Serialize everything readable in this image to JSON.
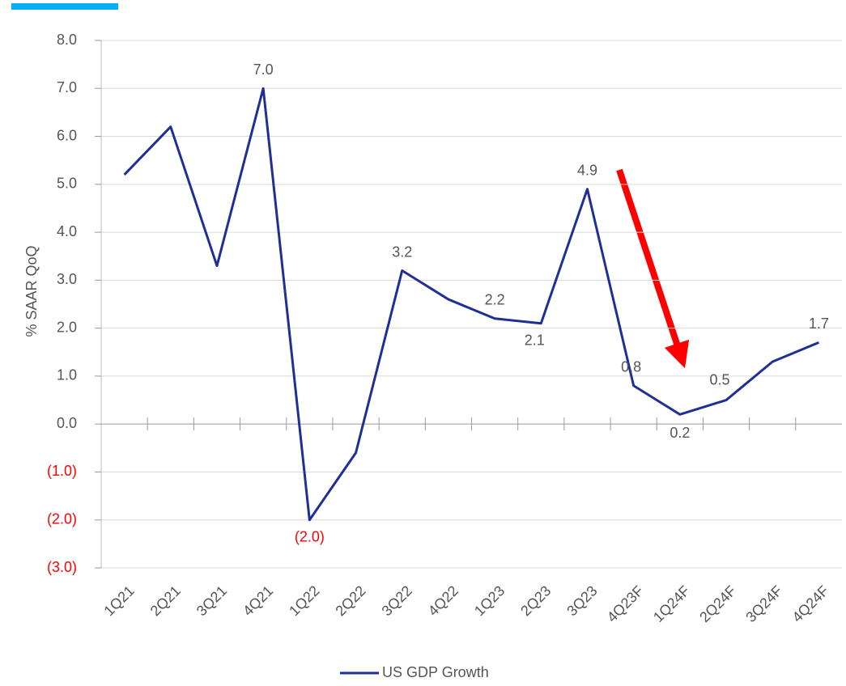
{
  "chart_data": {
    "type": "line",
    "y_label": "% SAAR QoQ",
    "categories": [
      "1Q21",
      "2Q21",
      "3Q21",
      "4Q21",
      "1Q22",
      "2Q22",
      "3Q22",
      "4Q22",
      "1Q23",
      "2Q23",
      "3Q23",
      "4Q23F",
      "1Q24F",
      "2Q24F",
      "3Q24F",
      "4Q24F"
    ],
    "series": [
      {
        "name": "US GDP Growth",
        "color": "#1f2f96",
        "values": [
          5.2,
          6.2,
          3.3,
          7.0,
          -2.0,
          -0.6,
          3.2,
          2.6,
          2.2,
          2.1,
          4.9,
          0.8,
          0.2,
          0.5,
          1.3,
          1.7
        ],
        "value_labels": [
          null,
          null,
          null,
          "7.0",
          "(2.0)",
          null,
          "3.2",
          null,
          "2.2",
          "2.1",
          "4.9",
          "0.8",
          "0.2",
          "0.5",
          null,
          "1.7"
        ]
      }
    ],
    "ylim": [
      -3,
      8
    ],
    "yticks": [
      {
        "value": -3,
        "label": "(3.0)"
      },
      {
        "value": -2,
        "label": "(2.0)"
      },
      {
        "value": -1,
        "label": "(1.0)"
      },
      {
        "value": 0,
        "label": "0.0"
      },
      {
        "value": 1,
        "label": "1.0"
      },
      {
        "value": 2,
        "label": "2.0"
      },
      {
        "value": 3,
        "label": "3.0"
      },
      {
        "value": 4,
        "label": "4.0"
      },
      {
        "value": 5,
        "label": "5.0"
      },
      {
        "value": 6,
        "label": "6.0"
      },
      {
        "value": 7,
        "label": "7.0"
      },
      {
        "value": 8,
        "label": "8.0"
      }
    ],
    "grid": true,
    "negative_color": "#ff0000",
    "legend": "bottom"
  }
}
